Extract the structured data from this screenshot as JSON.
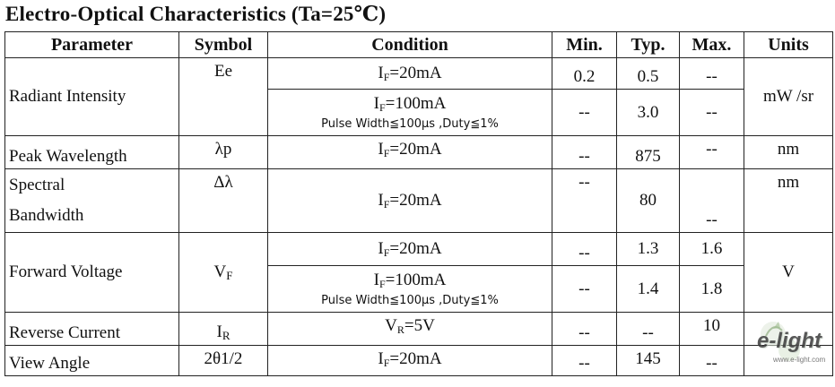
{
  "title": "Electro-Optical Characteristics (Ta=25℃)",
  "headers": {
    "parameter": "Parameter",
    "symbol": "Symbol",
    "condition": "Condition",
    "min": "Min.",
    "typ": "Typ.",
    "max": "Max.",
    "units": "Units"
  },
  "rows": {
    "radiant": {
      "parameter": "Radiant Intensity",
      "symbol": "Ee",
      "units": "mW /sr",
      "sub1": {
        "cond_base": "I",
        "cond_sub": "F",
        "cond_rest": "=20mA",
        "min": "0.2",
        "typ": "0.5",
        "max": "--"
      },
      "sub2": {
        "cond_base": "I",
        "cond_sub": "F",
        "cond_rest": "=100mA",
        "note": "Pulse Width≦100μs ,Duty≦1%",
        "min": "--",
        "typ": "3.0",
        "max": "--"
      }
    },
    "peak": {
      "parameter": "Peak Wavelength",
      "symbol": "λp",
      "cond_base": "I",
      "cond_sub": "F",
      "cond_rest": "=20mA",
      "min": "--",
      "typ": "875",
      "max": "--",
      "units": "nm"
    },
    "spectral": {
      "parameter_line1": "Spectral",
      "parameter_line2": "Bandwidth",
      "symbol": "Δλ",
      "cond_base": "I",
      "cond_sub": "F",
      "cond_rest": "=20mA",
      "min": "--",
      "typ": "80",
      "max": "--",
      "units": "nm"
    },
    "forward": {
      "parameter": "Forward Voltage",
      "symbol_base": "V",
      "symbol_sub": "F",
      "units": "V",
      "sub1": {
        "cond_base": "I",
        "cond_sub": "F",
        "cond_rest": "=20mA",
        "min": "--",
        "typ": "1.3",
        "max": "1.6"
      },
      "sub2": {
        "cond_base": "I",
        "cond_sub": "F",
        "cond_rest": "=100mA",
        "note": "Pulse Width≦100μs ,Duty≦1%",
        "min": "--",
        "typ": "1.4",
        "max": "1.8"
      }
    },
    "reverse": {
      "parameter": "Reverse Current",
      "symbol_base": "I",
      "symbol_sub": "R",
      "cond_base": "V",
      "cond_sub": "R",
      "cond_rest": "=5V",
      "min": "--",
      "typ": "--",
      "max": "10",
      "units": ""
    },
    "view": {
      "parameter": "View Angle",
      "symbol": "2θ1/2",
      "cond_base": "I",
      "cond_sub": "F",
      "cond_rest": "=20mA",
      "min": "--",
      "typ": "145",
      "max": "--",
      "units": ""
    }
  },
  "logo": {
    "text": "e-light",
    "subtext": "www.e-light.com"
  }
}
